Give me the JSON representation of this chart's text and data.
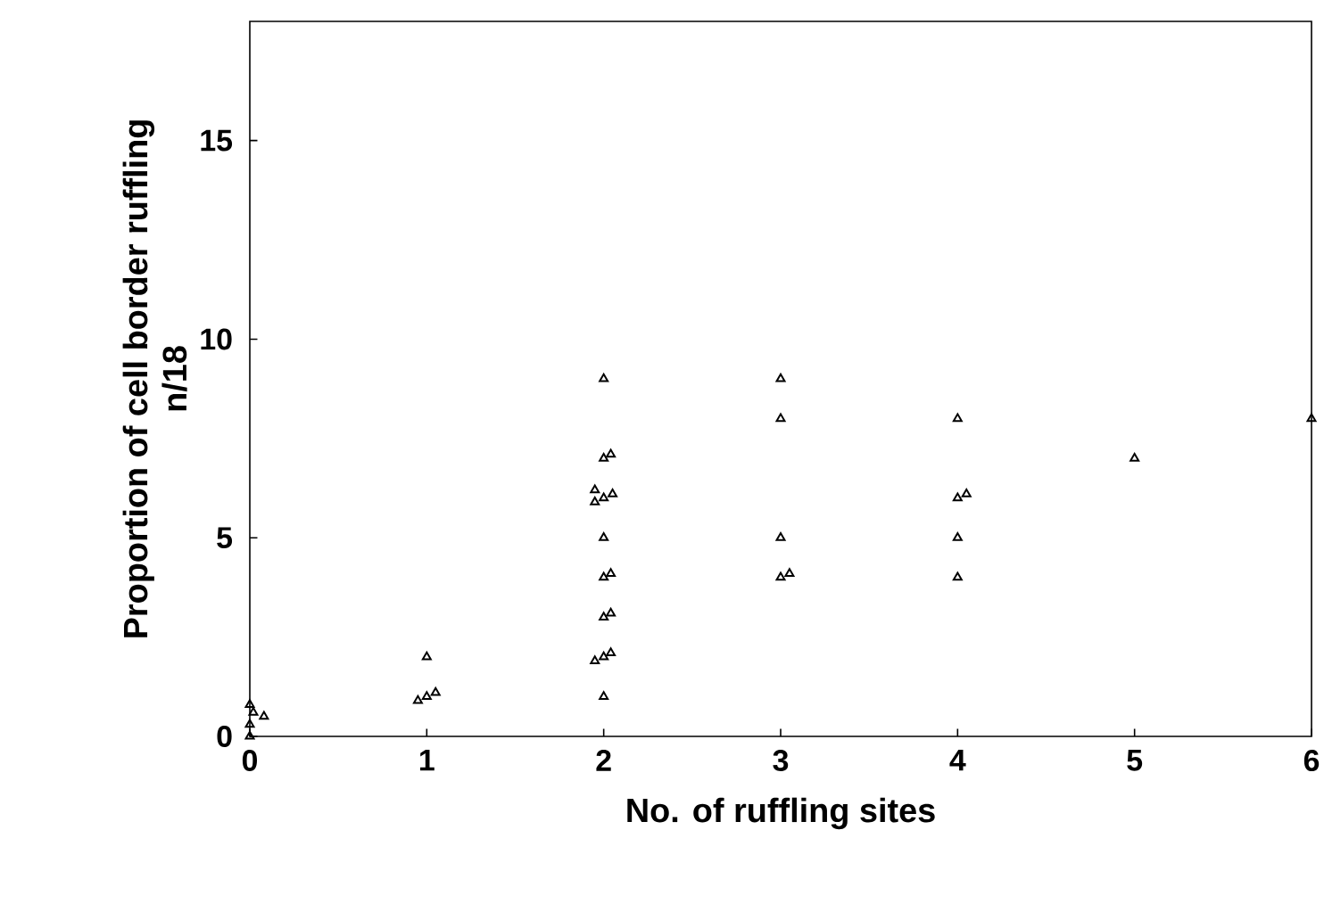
{
  "chart_data": {
    "type": "scatter",
    "xlabel": "No. of ruffling sites",
    "ylabel": "Proportion of cell border ruffling\nn/18",
    "xlim": [
      0,
      6
    ],
    "ylim": [
      0,
      18
    ],
    "xticks": [
      0,
      1,
      2,
      3,
      4,
      5,
      6
    ],
    "yticks": [
      0,
      5,
      10,
      15
    ],
    "marker": "triangle",
    "series": [
      {
        "color": "#000000",
        "x": [
          0,
          0,
          0.02,
          0.08,
          0,
          0.95,
          1.0,
          1.05,
          1.0,
          2.0,
          2.0,
          2.04,
          1.95,
          1.95,
          2.0,
          2.05,
          2.0,
          2.0,
          2.04,
          2.0,
          2.04,
          1.95,
          2.0,
          2.04,
          2.0,
          3.0,
          3.0,
          3.0,
          3.0,
          3.05,
          4.0,
          4.0,
          4.05,
          4.0,
          4.0,
          5.0,
          6.0
        ],
        "values": [
          0,
          0.3,
          0.6,
          0.5,
          0.8,
          0.9,
          1.0,
          1.1,
          2,
          9,
          7,
          7.1,
          6.2,
          5.9,
          6.0,
          6.1,
          5,
          4,
          4.1,
          3,
          3.1,
          1.9,
          2.0,
          2.1,
          1,
          9,
          8,
          5,
          4,
          4.1,
          8,
          6,
          6.1,
          5,
          4,
          7,
          8
        ]
      }
    ]
  }
}
